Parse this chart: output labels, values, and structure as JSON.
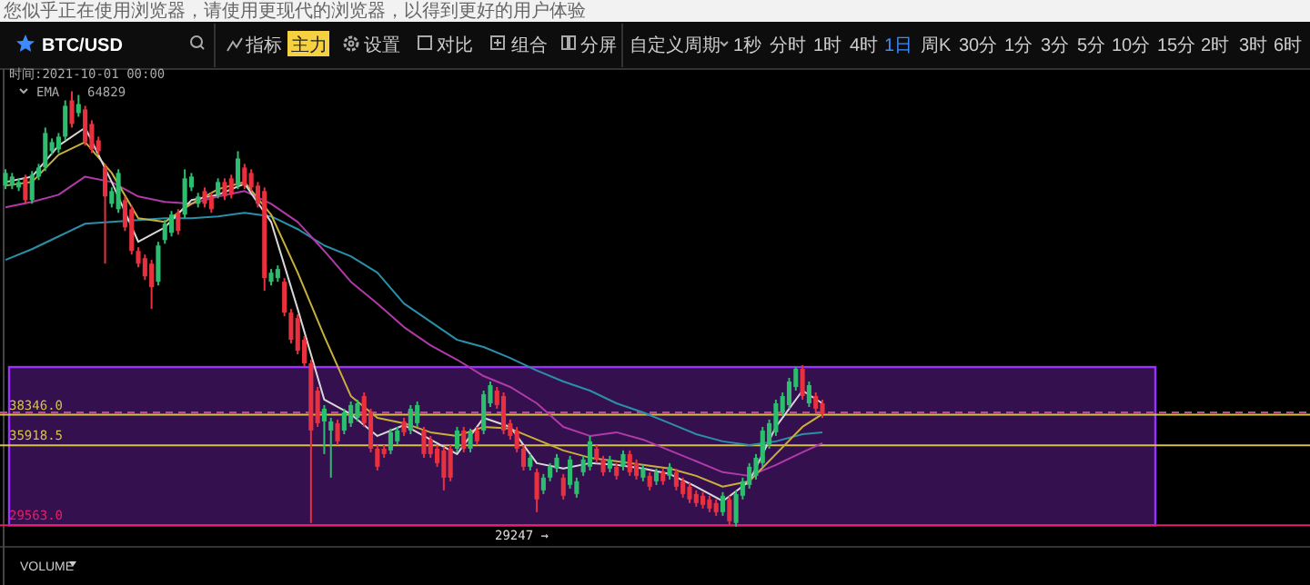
{
  "chart_data": {
    "type": "candlestick",
    "title": "BTC/USD",
    "tick_labels": false,
    "annotations": [
      "您似乎正在使用浏览器，请使用更现代的浏览器，以得到更好的用户体验",
      "时间:2021-10-01 00:00",
      "EMA",
      "64829",
      "29247 →",
      "VOLUME",
      "指标",
      "主力",
      "设置",
      "对比",
      "组合",
      "分屏",
      "自定义周期",
      "1秒",
      "分时",
      "1时",
      "4时",
      "1日",
      "周K",
      "30分",
      "1分",
      "3分",
      "5分",
      "10分",
      "15分",
      "2时",
      "3时",
      "6时"
    ],
    "categories": [
      null,
      null,
      null,
      null,
      null,
      null,
      null,
      null,
      null,
      null,
      null,
      null,
      null,
      null,
      null,
      null,
      null,
      null,
      null,
      null,
      null,
      null,
      null,
      null,
      null,
      null,
      null,
      null,
      null,
      null,
      null,
      null,
      null,
      null,
      null,
      null,
      null,
      null,
      null,
      null,
      null,
      null,
      null,
      null,
      null,
      null,
      null,
      null,
      null,
      null,
      null,
      null,
      null,
      null,
      null,
      null,
      null,
      null,
      null,
      null,
      null,
      null,
      null,
      null,
      null,
      null,
      null,
      null,
      null,
      null,
      null,
      null,
      null,
      null,
      null,
      null,
      null,
      null,
      null,
      null,
      null,
      null,
      null,
      null,
      null,
      null,
      null,
      null,
      null,
      null,
      null,
      null,
      null,
      null,
      null,
      null,
      null,
      null,
      null,
      null,
      null,
      null,
      null,
      null,
      null,
      null,
      null,
      null,
      null,
      null,
      null,
      null,
      null,
      null,
      null,
      null,
      null,
      null,
      null,
      null,
      null,
      null,
      null,
      null
    ],
    "ylim": [
      28000,
      65500
    ],
    "ohlc": [
      [
        56530,
        57830,
        56250,
        57540
      ],
      [
        56530,
        57540,
        56250,
        57250
      ],
      [
        56390,
        57110,
        56100,
        56820
      ],
      [
        57110,
        57400,
        55090,
        55380
      ],
      [
        55380,
        57690,
        55090,
        57400
      ],
      [
        57250,
        58260,
        56970,
        57970
      ],
      [
        57970,
        61140,
        57690,
        60710
      ],
      [
        59270,
        60280,
        58980,
        59990
      ],
      [
        59410,
        60710,
        59120,
        60420
      ],
      [
        60420,
        63300,
        60130,
        62870
      ],
      [
        63300,
        64020,
        61140,
        61430
      ],
      [
        62290,
        63730,
        62000,
        63010
      ],
      [
        62580,
        62870,
        59700,
        59990
      ],
      [
        61430,
        61720,
        59120,
        59410
      ],
      [
        60130,
        60420,
        58980,
        59270
      ],
      [
        57970,
        58260,
        50340,
        55670
      ],
      [
        55090,
        56390,
        54800,
        56100
      ],
      [
        54660,
        57830,
        54370,
        57540
      ],
      [
        55380,
        55670,
        52930,
        53220
      ],
      [
        54660,
        54950,
        51060,
        51350
      ],
      [
        51350,
        51640,
        50060,
        50340
      ],
      [
        50770,
        51060,
        49040,
        49330
      ],
      [
        50340,
        50630,
        46740,
        48470
      ],
      [
        48900,
        52070,
        48610,
        51780
      ],
      [
        52210,
        53800,
        51920,
        53510
      ],
      [
        52790,
        54520,
        52500,
        54230
      ],
      [
        54370,
        54660,
        52640,
        52930
      ],
      [
        54230,
        57830,
        53940,
        57110
      ],
      [
        56390,
        57540,
        56100,
        57250
      ],
      [
        55090,
        55960,
        54800,
        55670
      ],
      [
        56100,
        56390,
        54800,
        55090
      ],
      [
        55670,
        55960,
        54370,
        54660
      ],
      [
        55810,
        57110,
        55520,
        56820
      ],
      [
        56820,
        57110,
        55380,
        55670
      ],
      [
        57110,
        57400,
        55520,
        55810
      ],
      [
        56530,
        59270,
        56250,
        58690
      ],
      [
        57970,
        58260,
        56250,
        56530
      ],
      [
        57540,
        57830,
        56100,
        56390
      ],
      [
        56530,
        56820,
        54800,
        55090
      ],
      [
        56100,
        56390,
        48180,
        49190
      ],
      [
        48900,
        49910,
        48610,
        49620
      ],
      [
        49190,
        50200,
        48900,
        49910
      ],
      [
        48900,
        49190,
        46160,
        46450
      ],
      [
        46450,
        46740,
        44000,
        44290
      ],
      [
        46020,
        46310,
        43140,
        43430
      ],
      [
        44290,
        44580,
        42130,
        42420
      ],
      [
        42420,
        42710,
        29750,
        37090
      ],
      [
        40260,
        40550,
        37380,
        37670
      ],
      [
        37810,
        39110,
        35220,
        38820
      ],
      [
        37090,
        38100,
        33350,
        37810
      ],
      [
        37670,
        37960,
        35940,
        36230
      ],
      [
        37090,
        38820,
        36800,
        38530
      ],
      [
        37670,
        39400,
        37380,
        39110
      ],
      [
        38100,
        39540,
        37810,
        39250
      ],
      [
        39830,
        40120,
        37380,
        37670
      ],
      [
        38530,
        38820,
        35360,
        35650
      ],
      [
        35650,
        35940,
        33920,
        34210
      ],
      [
        35650,
        35940,
        34930,
        35220
      ],
      [
        35510,
        37240,
        35220,
        36950
      ],
      [
        36230,
        37380,
        35940,
        37090
      ],
      [
        37810,
        38100,
        36660,
        36950
      ],
      [
        37090,
        39110,
        36800,
        38820
      ],
      [
        37670,
        39400,
        37380,
        39110
      ],
      [
        37090,
        37380,
        34930,
        35220
      ],
      [
        36370,
        36660,
        34930,
        35220
      ],
      [
        35650,
        35940,
        34210,
        34500
      ],
      [
        35510,
        35800,
        32340,
        33350
      ],
      [
        35650,
        35940,
        33060,
        33350
      ],
      [
        35650,
        37380,
        35360,
        37090
      ],
      [
        37090,
        37380,
        35360,
        35650
      ],
      [
        35650,
        37240,
        35360,
        36950
      ],
      [
        37090,
        37380,
        35940,
        36230
      ],
      [
        37090,
        40260,
        36800,
        39970
      ],
      [
        39250,
        40980,
        38960,
        40690
      ],
      [
        40260,
        40550,
        38820,
        39110
      ],
      [
        39830,
        40120,
        36800,
        37090
      ],
      [
        37670,
        37960,
        36370,
        36660
      ],
      [
        37090,
        37380,
        35360,
        35650
      ],
      [
        35650,
        35940,
        33920,
        34210
      ],
      [
        34210,
        35220,
        33920,
        34930
      ],
      [
        33780,
        34070,
        30610,
        31620
      ],
      [
        32340,
        33640,
        32050,
        33350
      ],
      [
        33350,
        34500,
        33060,
        34210
      ],
      [
        34070,
        35220,
        33780,
        34930
      ],
      [
        33350,
        33640,
        31620,
        31910
      ],
      [
        32770,
        35080,
        32480,
        34790
      ],
      [
        32050,
        33350,
        31760,
        33060
      ],
      [
        33780,
        35080,
        33490,
        34790
      ],
      [
        34210,
        36660,
        33920,
        36230
      ],
      [
        35650,
        35940,
        34500,
        34790
      ],
      [
        34790,
        35080,
        33490,
        33780
      ],
      [
        34070,
        35080,
        33780,
        34790
      ],
      [
        34210,
        34500,
        33200,
        33490
      ],
      [
        34210,
        35510,
        33920,
        35220
      ],
      [
        35220,
        35510,
        33490,
        33780
      ],
      [
        34500,
        34790,
        33200,
        33490
      ],
      [
        33350,
        34360,
        33060,
        34070
      ],
      [
        33490,
        33780,
        32340,
        32630
      ],
      [
        33060,
        34070,
        32770,
        33780
      ],
      [
        33780,
        34070,
        32770,
        33060
      ],
      [
        33490,
        34500,
        33200,
        34210
      ],
      [
        33780,
        34070,
        32340,
        32630
      ],
      [
        33060,
        33350,
        31760,
        32050
      ],
      [
        32630,
        32920,
        31330,
        31620
      ],
      [
        32050,
        32340,
        31040,
        31330
      ],
      [
        31910,
        32200,
        30900,
        31190
      ],
      [
        31620,
        31910,
        30610,
        30900
      ],
      [
        31330,
        31620,
        30320,
        30610
      ],
      [
        30610,
        32200,
        30320,
        31910
      ],
      [
        31620,
        31910,
        29600,
        29890
      ],
      [
        29750,
        32340,
        29460,
        32050
      ],
      [
        31910,
        33350,
        31620,
        33060
      ],
      [
        32770,
        34500,
        32480,
        34210
      ],
      [
        33490,
        35220,
        33200,
        34930
      ],
      [
        34500,
        37380,
        34210,
        37090
      ],
      [
        35940,
        37960,
        35650,
        37670
      ],
      [
        36950,
        39540,
        36660,
        39250
      ],
      [
        38530,
        40120,
        38240,
        39830
      ],
      [
        39110,
        41270,
        38820,
        40980
      ],
      [
        40550,
        42130,
        40260,
        41990
      ],
      [
        41990,
        42280,
        39540,
        39830
      ],
      [
        39250,
        40980,
        38960,
        40690
      ],
      [
        39830,
        40120,
        38530,
        38820
      ],
      [
        39250,
        39540,
        38100,
        38390
      ]
    ],
    "series": [
      {
        "type": "line",
        "color": "#2a8fa8",
        "values": [
          50630,
          null,
          null,
          null,
          51490,
          null,
          null,
          null,
          52500,
          null,
          null,
          null,
          53510,
          null,
          null,
          null,
          53650,
          null,
          null,
          null,
          53800,
          null,
          null,
          null,
          53940,
          null,
          null,
          null,
          53940,
          null,
          null,
          null,
          54090,
          null,
          null,
          null,
          54370,
          null,
          null,
          null,
          54090,
          null,
          null,
          null,
          53080,
          null,
          null,
          null,
          51780,
          null,
          null,
          null,
          50920,
          null,
          null,
          null,
          49620,
          null,
          null,
          null,
          47170,
          null,
          null,
          null,
          45730,
          null,
          null,
          null,
          44290,
          null,
          null,
          null,
          43720,
          null,
          null,
          null,
          42850,
          null,
          null,
          null,
          41850,
          null,
          null,
          null,
          40980,
          null,
          null,
          null,
          40260,
          null,
          null,
          null,
          39250,
          null,
          null,
          null,
          38530,
          null,
          null,
          null,
          37670,
          null,
          null,
          null,
          36800,
          null,
          null,
          null,
          36230,
          null,
          null,
          null,
          35940,
          null,
          null,
          null,
          36230,
          null,
          null,
          null,
          36800,
          null,
          null,
          36950
        ]
      },
      {
        "type": "line",
        "color": "#b03aa8",
        "values": [
          54810,
          null,
          null,
          null,
          55240,
          null,
          null,
          null,
          55810,
          null,
          null,
          null,
          57250,
          null,
          null,
          null,
          56820,
          null,
          null,
          null,
          55670,
          null,
          null,
          null,
          55240,
          null,
          null,
          null,
          55090,
          null,
          null,
          null,
          55670,
          null,
          null,
          null,
          56100,
          null,
          null,
          null,
          55090,
          null,
          null,
          null,
          53650,
          null,
          null,
          null,
          51350,
          null,
          null,
          null,
          48900,
          null,
          null,
          null,
          47170,
          null,
          null,
          null,
          45300,
          null,
          null,
          null,
          43860,
          null,
          null,
          null,
          42710,
          null,
          null,
          null,
          41410,
          null,
          null,
          null,
          40550,
          null,
          null,
          null,
          39250,
          null,
          null,
          null,
          37380,
          null,
          null,
          null,
          36660,
          null,
          null,
          null,
          36950,
          null,
          null,
          null,
          36370,
          null,
          null,
          null,
          35510,
          null,
          null,
          null,
          34650,
          null,
          null,
          null,
          33780,
          null,
          null,
          null,
          33490,
          null,
          null,
          null,
          34360,
          null,
          null,
          null,
          35360,
          null,
          null,
          36090
        ]
      },
      {
        "type": "line",
        "color": "#c9b03c",
        "values": [
          56530,
          null,
          null,
          null,
          56820,
          null,
          null,
          null,
          58980,
          null,
          null,
          null,
          59990,
          null,
          null,
          null,
          57540,
          null,
          null,
          null,
          53940,
          null,
          null,
          null,
          53650,
          null,
          null,
          null,
          55090,
          null,
          null,
          null,
          56250,
          null,
          null,
          null,
          56820,
          null,
          null,
          null,
          54230,
          null,
          null,
          null,
          49620,
          null,
          null,
          null,
          44580,
          null,
          null,
          null,
          39830,
          null,
          null,
          null,
          38100,
          null,
          null,
          null,
          37670,
          null,
          null,
          null,
          36950,
          null,
          null,
          null,
          36660,
          null,
          null,
          null,
          37380,
          null,
          null,
          null,
          37240,
          null,
          null,
          null,
          36370,
          null,
          null,
          null,
          35510,
          null,
          null,
          null,
          34930,
          null,
          null,
          null,
          34650,
          null,
          null,
          null,
          34360,
          null,
          null,
          null,
          34070,
          null,
          null,
          null,
          33490,
          null,
          null,
          null,
          32630,
          null,
          null,
          null,
          33060,
          null,
          null,
          null,
          35220,
          null,
          null,
          null,
          37380,
          null,
          null,
          38390
        ]
      },
      {
        "type": "line",
        "color": "#d8d8d8",
        "values": [
          56820,
          null,
          null,
          null,
          57250,
          null,
          null,
          null,
          59700,
          null,
          null,
          null,
          61140,
          null,
          null,
          null,
          56820,
          null,
          null,
          null,
          52070,
          null,
          null,
          null,
          53220,
          null,
          null,
          null,
          55380,
          null,
          null,
          null,
          55810,
          null,
          null,
          null,
          56680,
          null,
          null,
          null,
          53650,
          null,
          null,
          null,
          46740,
          null,
          null,
          null,
          39540,
          null,
          null,
          null,
          38390,
          null,
          null,
          null,
          36660,
          null,
          null,
          null,
          37520,
          null,
          null,
          null,
          36370,
          null,
          null,
          null,
          35220,
          null,
          null,
          null,
          38100,
          null,
          null,
          null,
          37380,
          null,
          null,
          null,
          34500,
          null,
          null,
          null,
          34070,
          null,
          null,
          null,
          34500,
          null,
          null,
          null,
          34360,
          null,
          null,
          null,
          34070,
          null,
          null,
          null,
          33640,
          null,
          null,
          null,
          32630,
          null,
          null,
          null,
          31480,
          null,
          null,
          null,
          33060,
          null,
          null,
          null,
          37380,
          null,
          null,
          null,
          40260,
          null,
          null,
          39250
        ]
      }
    ],
    "ref_lines": [
      {
        "axis": "y",
        "value": 38346,
        "label": "38346.0",
        "color": "#d4c04a"
      },
      {
        "axis": "y",
        "value": 35918.5,
        "label": "35918.5",
        "color": "#d4c04a"
      },
      {
        "axis": "y",
        "value": 29563,
        "label": "29563.0",
        "color": "#e0206a"
      },
      {
        "axis": "y",
        "value": 38530,
        "color": "#c04a8a",
        "line_style": "dashed"
      }
    ],
    "bands": [
      {
        "axis": "y",
        "from": 29563,
        "to": 42130,
        "color": "#35104f"
      }
    ]
  }
}
